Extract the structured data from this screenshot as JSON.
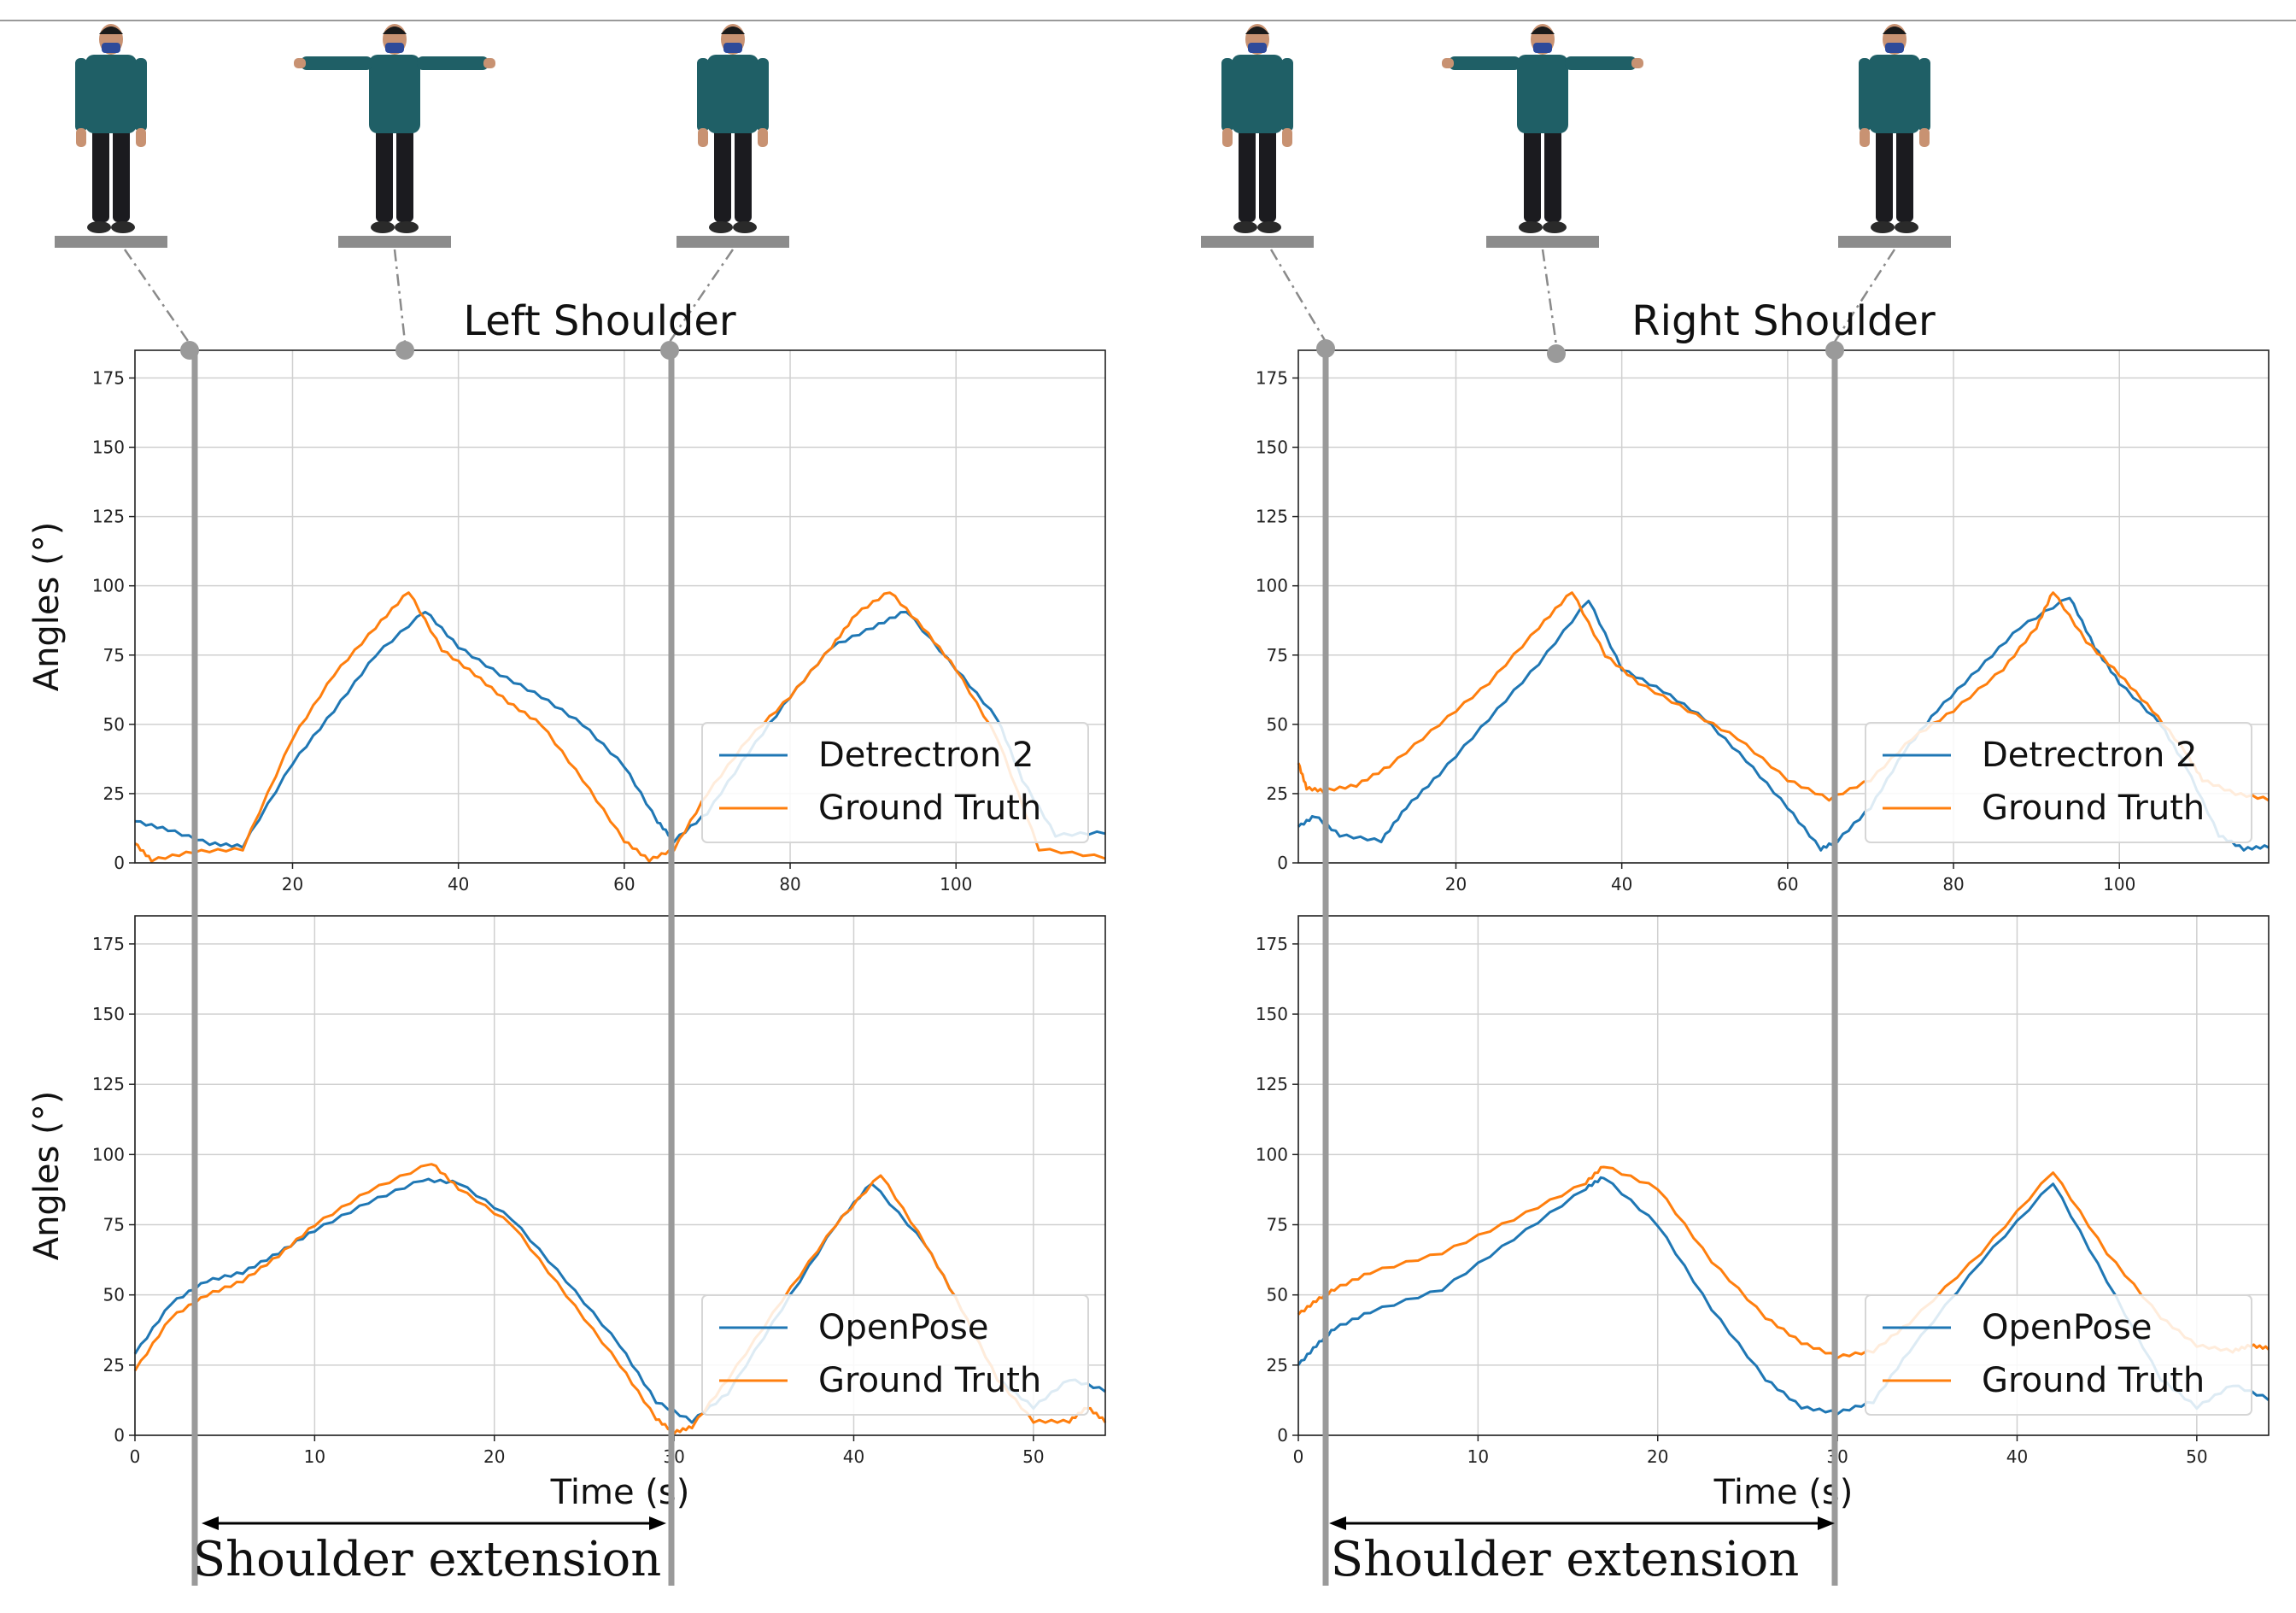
{
  "colors": {
    "series_a": "#1f77b4",
    "series_b": "#ff7f0e",
    "grid": "#d0d0d0",
    "marker": "#9a9a9a",
    "platform": "#8c8c8c",
    "shirt": "#1f5f66",
    "pants": "#1b1b1f",
    "skin": "#c89272",
    "mask": "#2e4a9a"
  },
  "figure": {
    "left_title": "Left Shoulder",
    "right_title": "Right Shoulder",
    "annotation": "Shoulder extension",
    "pose_icons": [
      "standing-pose-icon",
      "t-pose-icon",
      "standing-pose-icon"
    ]
  },
  "chart_data": [
    {
      "id": "left-top",
      "type": "line",
      "title": "Left Shoulder",
      "xlabel": "",
      "ylabel": "Angles (°)",
      "xlim": [
        1,
        118
      ],
      "ylim": [
        0,
        185
      ],
      "xticks": [
        20,
        40,
        60,
        80,
        100
      ],
      "yticks": [
        0,
        25,
        50,
        75,
        100,
        125,
        150,
        175
      ],
      "legend": "lower-right",
      "series": [
        {
          "name": "Detrectron 2",
          "color": "#1f77b4",
          "x": [
            1,
            5,
            10,
            14,
            20,
            25,
            30,
            36,
            40,
            45,
            50,
            55,
            60,
            64,
            66,
            70,
            75,
            80,
            85,
            90,
            94,
            100,
            105,
            108,
            112,
            118
          ],
          "y": [
            15,
            12,
            7,
            6,
            36,
            55,
            75,
            91,
            78,
            68,
            60,
            50,
            35,
            15,
            8,
            18,
            40,
            60,
            78,
            85,
            91,
            70,
            52,
            30,
            10,
            11
          ]
        },
        {
          "name": "Ground Truth",
          "color": "#ff7f0e",
          "x": [
            1,
            3,
            8,
            14,
            20,
            25,
            30,
            34,
            38,
            42,
            46,
            50,
            55,
            60,
            63,
            66,
            70,
            75,
            80,
            85,
            88,
            92,
            96,
            100,
            105,
            110,
            118
          ],
          "y": [
            7,
            1,
            4,
            5,
            45,
            68,
            85,
            98,
            77,
            68,
            58,
            50,
            30,
            8,
            1,
            5,
            25,
            45,
            60,
            78,
            90,
            98,
            85,
            70,
            45,
            5,
            2
          ]
        }
      ]
    },
    {
      "id": "left-bottom",
      "type": "line",
      "xlabel": "Time (s)",
      "ylabel": "Angles (°)",
      "xlim": [
        0,
        54
      ],
      "ylim": [
        0,
        185
      ],
      "xticks": [
        0,
        10,
        20,
        30,
        40,
        50
      ],
      "yticks": [
        0,
        25,
        50,
        75,
        100,
        125,
        150,
        175
      ],
      "legend": "lower-right",
      "series": [
        {
          "name": "OpenPose",
          "color": "#1f77b4",
          "x": [
            0,
            2,
            4,
            6,
            8,
            10,
            13,
            16,
            18,
            21,
            24,
            27,
            29,
            31,
            33,
            36,
            39,
            41,
            44,
            46,
            48,
            50,
            52,
            54
          ],
          "y": [
            29,
            47,
            55,
            58,
            65,
            73,
            83,
            91,
            90,
            77,
            55,
            32,
            12,
            5,
            15,
            45,
            75,
            90,
            68,
            45,
            20,
            10,
            20,
            16
          ]
        },
        {
          "name": "Ground Truth",
          "color": "#ff7f0e",
          "x": [
            0,
            2,
            4,
            6,
            8,
            10,
            13,
            16.5,
            18,
            21,
            24,
            27,
            29,
            30,
            31,
            33,
            36,
            39,
            41.5,
            44,
            46,
            48,
            50,
            52,
            53,
            54
          ],
          "y": [
            23,
            42,
            50,
            55,
            64,
            75,
            87,
            97,
            88,
            75,
            50,
            25,
            6,
            1,
            3,
            20,
            48,
            75,
            93,
            68,
            45,
            20,
            5,
            5,
            10,
            5
          ]
        }
      ]
    },
    {
      "id": "right-top",
      "type": "line",
      "title": "Right Shoulder",
      "xlabel": "",
      "ylabel": "",
      "xlim": [
        1,
        118
      ],
      "ylim": [
        0,
        185
      ],
      "xticks": [
        20,
        40,
        60,
        80,
        100
      ],
      "yticks": [
        0,
        25,
        50,
        75,
        100,
        125,
        150,
        175
      ],
      "legend": "lower-right",
      "series": [
        {
          "name": "Detrectron 2",
          "color": "#1f77b4",
          "x": [
            1,
            3,
            6,
            11,
            14,
            18,
            24,
            30,
            36,
            40,
            45,
            50,
            55,
            60,
            64,
            66,
            70,
            74,
            78,
            83,
            88,
            94,
            97,
            100,
            105,
            108,
            112,
            115,
            118
          ],
          "y": [
            13,
            17,
            10,
            8,
            20,
            32,
            52,
            72,
            95,
            70,
            62,
            52,
            37,
            20,
            5,
            8,
            20,
            40,
            55,
            70,
            85,
            96,
            78,
            65,
            50,
            35,
            10,
            5,
            6
          ]
        },
        {
          "name": "Ground Truth",
          "color": "#ff7f0e",
          "x": [
            1,
            2,
            4,
            8,
            12,
            18,
            24,
            30,
            34,
            38,
            42,
            48,
            54,
            60,
            65,
            70,
            75,
            80,
            86,
            90,
            92,
            96,
            100,
            104,
            108,
            110,
            114,
            118
          ],
          "y": [
            36,
            27,
            26,
            28,
            35,
            50,
            65,
            85,
            98,
            75,
            65,
            55,
            45,
            30,
            23,
            30,
            45,
            55,
            70,
            85,
            98,
            80,
            68,
            55,
            40,
            30,
            25,
            23
          ]
        }
      ]
    },
    {
      "id": "right-bottom",
      "type": "line",
      "xlabel": "Time (s)",
      "ylabel": "",
      "xlim": [
        0,
        54
      ],
      "ylim": [
        0,
        185
      ],
      "xticks": [
        0,
        10,
        20,
        30,
        40,
        50
      ],
      "yticks": [
        0,
        25,
        50,
        75,
        100,
        125,
        150,
        175
      ],
      "legend": "lower-right",
      "series": [
        {
          "name": "OpenPose",
          "color": "#1f77b4",
          "x": [
            0,
            1,
            2,
            4,
            8,
            12,
            16,
            17,
            20,
            23,
            26,
            28,
            30,
            32,
            34,
            38,
            42,
            45,
            48,
            50,
            52,
            54
          ],
          "y": [
            25,
            32,
            38,
            44,
            52,
            70,
            88,
            92,
            75,
            45,
            20,
            10,
            8,
            12,
            30,
            62,
            90,
            55,
            20,
            10,
            18,
            13
          ]
        },
        {
          "name": "Ground Truth",
          "color": "#ff7f0e",
          "x": [
            0,
            1,
            2,
            4,
            8,
            12,
            16,
            17,
            20,
            23,
            26,
            28,
            30,
            32,
            34,
            38,
            42,
            45,
            48,
            50,
            52,
            53,
            54
          ],
          "y": [
            43,
            48,
            52,
            58,
            65,
            77,
            90,
            96,
            88,
            62,
            42,
            33,
            28,
            30,
            40,
            65,
            94,
            65,
            42,
            32,
            30,
            32,
            31
          ]
        }
      ]
    }
  ]
}
